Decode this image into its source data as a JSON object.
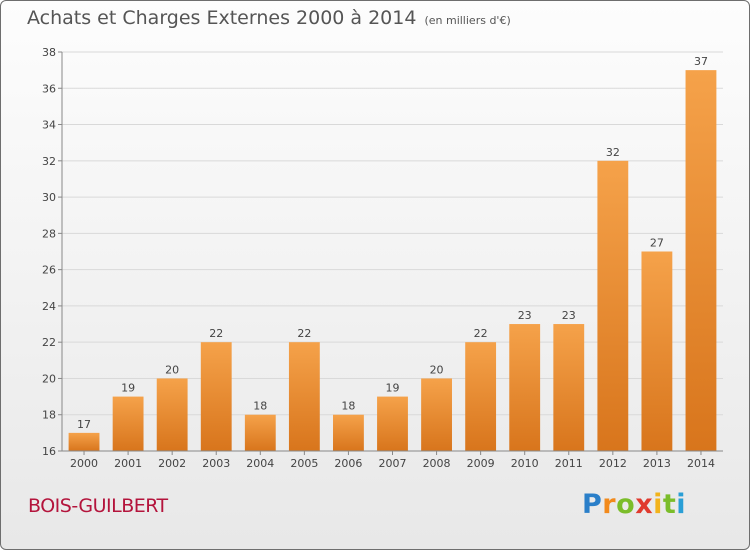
{
  "header": {
    "title": "Achats et Charges Externes 2000 à 2014",
    "subtitle": "(en milliers d'€)"
  },
  "footer": {
    "commune": "BOIS-GUILBERT",
    "logo_letters": [
      "P",
      "r",
      "o",
      "x",
      "i",
      "t",
      "i"
    ],
    "logo_colors": [
      "#2a7fc9",
      "#f28a1c",
      "#7bbd2a",
      "#e03a2e",
      "#f2b31c",
      "#7bbd2a",
      "#2a9fd6"
    ]
  },
  "colors": {
    "bar_light": "#f5a24a",
    "bar_dark": "#d8751c",
    "grid": "#d9d9d9",
    "axis": "#888888"
  },
  "chart_data": {
    "type": "bar",
    "title": "Achats et Charges Externes 2000 à 2014",
    "subtitle": "(en milliers d'€)",
    "categories": [
      "2000",
      "2001",
      "2002",
      "2003",
      "2004",
      "2005",
      "2006",
      "2007",
      "2008",
      "2009",
      "2010",
      "2011",
      "2012",
      "2013",
      "2014"
    ],
    "values": [
      17,
      19,
      20,
      22,
      18,
      22,
      18,
      19,
      20,
      22,
      23,
      23,
      32,
      27,
      37
    ],
    "ylim": [
      16,
      38
    ],
    "yticks": [
      16,
      18,
      20,
      22,
      24,
      26,
      28,
      30,
      32,
      34,
      36,
      38
    ],
    "grid": true,
    "xlabel": "",
    "ylabel": ""
  }
}
